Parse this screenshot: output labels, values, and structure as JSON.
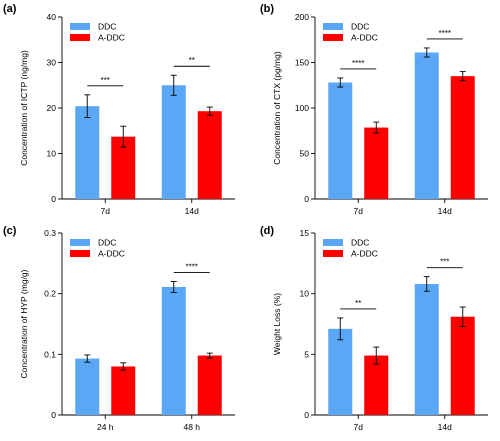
{
  "colors": {
    "series1": "#5aa7f5",
    "series2": "#fe0000"
  },
  "chart_data": [
    {
      "panel": "(a)",
      "type": "bar",
      "ylabel": "Concentration of ICTP (ng/mg)",
      "ylim": [
        0,
        40
      ],
      "yticks": [
        0,
        10,
        20,
        30,
        40
      ],
      "categories": [
        "7d",
        "14d"
      ],
      "series": [
        {
          "name": "DDC",
          "values": [
            20.4,
            25.0
          ],
          "errors": [
            2.5,
            2.2
          ]
        },
        {
          "name": "A-DDC",
          "values": [
            13.7,
            19.3
          ],
          "errors": [
            2.3,
            0.9
          ]
        }
      ],
      "significance": [
        "***",
        "**"
      ],
      "legend": "top-left"
    },
    {
      "panel": "(b)",
      "type": "bar",
      "ylabel": "Concentration of CTX (pg/mg)",
      "ylim": [
        0,
        200
      ],
      "yticks": [
        0,
        50,
        100,
        150,
        200
      ],
      "categories": [
        "7d",
        "14d"
      ],
      "series": [
        {
          "name": "DDC",
          "values": [
            128,
            161
          ],
          "errors": [
            5,
            5
          ]
        },
        {
          "name": "A-DDC",
          "values": [
            78.5,
            135
          ],
          "errors": [
            6,
            5
          ]
        }
      ],
      "significance": [
        "****",
        "****"
      ],
      "legend": "top-left"
    },
    {
      "panel": "(c)",
      "type": "bar",
      "ylabel": "Concentration of HYP (mg/g)",
      "ylim": [
        0,
        0.3
      ],
      "yticks": [
        "0",
        "0.1",
        "0.2",
        "0.3"
      ],
      "categories": [
        "24 h",
        "48 h"
      ],
      "series": [
        {
          "name": "DDC",
          "values": [
            0.093,
            0.211
          ],
          "errors": [
            0.006,
            0.009
          ]
        },
        {
          "name": "A-DDC",
          "values": [
            0.08,
            0.098
          ],
          "errors": [
            0.006,
            0.004
          ]
        }
      ],
      "significance": [
        "",
        "****"
      ],
      "legend": "top-left"
    },
    {
      "panel": "(d)",
      "type": "bar",
      "ylabel": "Weight Loss (%)",
      "ylim": [
        0,
        15
      ],
      "yticks": [
        0,
        5,
        10,
        15
      ],
      "categories": [
        "7d",
        "14d"
      ],
      "series": [
        {
          "name": "DDC",
          "values": [
            7.1,
            10.8
          ],
          "errors": [
            0.9,
            0.6
          ]
        },
        {
          "name": "A-DDC",
          "values": [
            4.9,
            8.1
          ],
          "errors": [
            0.7,
            0.8
          ]
        }
      ],
      "significance": [
        "**",
        "***"
      ],
      "legend": "top-left"
    }
  ]
}
